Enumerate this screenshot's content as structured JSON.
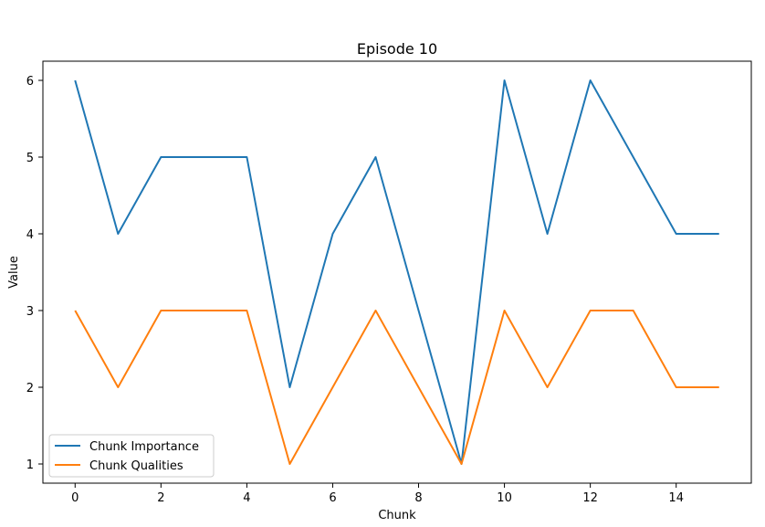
{
  "chart_data": {
    "type": "line",
    "title": "Episode 10",
    "xlabel": "Chunk",
    "ylabel": "Value",
    "x": [
      0,
      1,
      2,
      3,
      4,
      5,
      6,
      7,
      8,
      9,
      10,
      11,
      12,
      13,
      14,
      15
    ],
    "xlim": [
      -0.75,
      15.75
    ],
    "ylim": [
      0.75,
      6.25
    ],
    "xticks": [
      0,
      2,
      4,
      6,
      8,
      10,
      12,
      14
    ],
    "yticks": [
      1,
      2,
      3,
      4,
      5,
      6
    ],
    "grid": false,
    "legend_position": "bottom-left",
    "series": [
      {
        "name": "Chunk Importance",
        "color": "#1f77b4",
        "values": [
          6,
          4,
          5,
          5,
          5,
          2,
          4,
          5,
          3,
          1,
          6,
          4,
          6,
          5,
          4,
          4
        ]
      },
      {
        "name": "Chunk Qualities",
        "color": "#ff7f0e",
        "values": [
          3,
          2,
          3,
          3,
          3,
          1,
          2,
          3,
          2,
          1,
          3,
          2,
          3,
          3,
          2,
          2
        ]
      }
    ]
  }
}
